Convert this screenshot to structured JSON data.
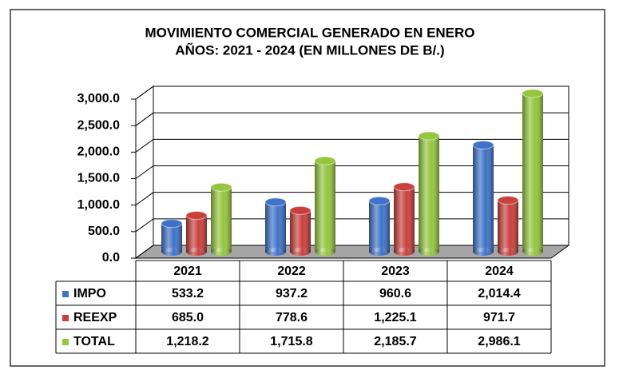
{
  "chart_data": {
    "type": "bar",
    "title": "MOVIMIENTO COMERCIAL GENERADO EN ENERO",
    "subtitle": "AÑOS: 2021 - 2024 (EN MILLONES DE B/.)",
    "categories": [
      "2021",
      "2022",
      "2023",
      "2024"
    ],
    "series": [
      {
        "name": "IMPO",
        "color": "#3f72c8",
        "values": [
          533.2,
          937.2,
          960.6,
          2014.4
        ],
        "value_labels": [
          "533.2",
          "937.2",
          "960.6",
          "2,014.4"
        ]
      },
      {
        "name": "REEXP",
        "color": "#c9403c",
        "values": [
          685.0,
          778.6,
          1225.1,
          971.7
        ],
        "value_labels": [
          "685.0",
          "778.6",
          "1,225.1",
          "971.7"
        ]
      },
      {
        "name": "TOTAL",
        "color": "#94c63e",
        "values": [
          1218.2,
          1715.8,
          2185.7,
          2986.1
        ],
        "value_labels": [
          "1,218.2",
          "1,715.8",
          "2,185.7",
          "2,986.1"
        ]
      }
    ],
    "ylim": [
      0,
      3000
    ],
    "yticks": [
      {
        "value": 0,
        "label": "0.0"
      },
      {
        "value": 500,
        "label": "500.0"
      },
      {
        "value": 1000,
        "label": "1,000.0"
      },
      {
        "value": 1500,
        "label": "1,500.0"
      },
      {
        "value": 2000,
        "label": "2,000.0"
      },
      {
        "value": 2500,
        "label": "2,500.0"
      },
      {
        "value": 3000,
        "label": "3,000.0"
      }
    ],
    "grid": true
  }
}
